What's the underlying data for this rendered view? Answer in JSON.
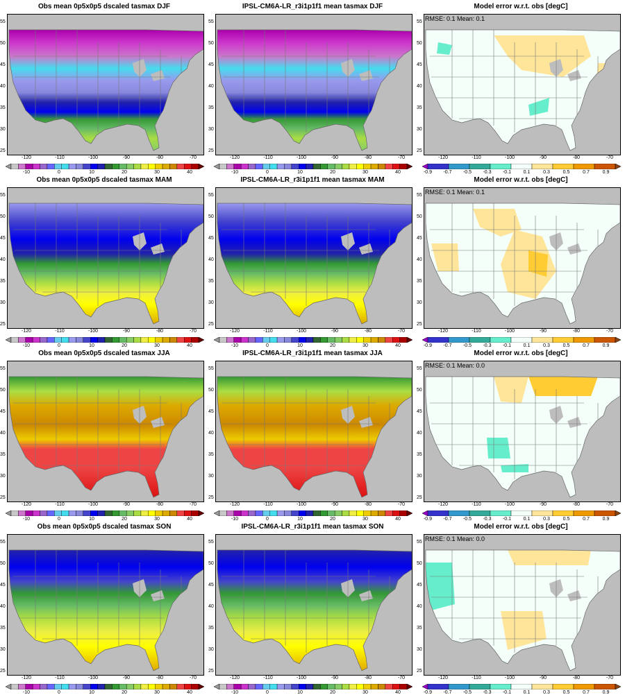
{
  "rows": [
    {
      "season": "DJF",
      "obs_title": "Obs mean 0p5x0p5 dscaled tasmax DJF",
      "model_title": "IPSL-CM6A-LR_r3i1p1f1 mean tasmax DJF",
      "err_title": "Model error w.r.t. obs [degC]",
      "err_stats": "RMSE: 0.1  Mean: 0.1"
    },
    {
      "season": "MAM",
      "obs_title": "Obs mean 0p5x0p5 dscaled tasmax MAM",
      "model_title": "IPSL-CM6A-LR_r3i1p1f1 mean tasmax MAM",
      "err_title": "Model error w.r.t. obs [degC]",
      "err_stats": "RMSE: 0.1  Mean: 0.1"
    },
    {
      "season": "JJA",
      "obs_title": "Obs mean 0p5x0p5 dscaled tasmax JJA",
      "model_title": "IPSL-CM6A-LR_r3i1p1f1 mean tasmax JJA",
      "err_title": "Model error w.r.t. obs [degC]",
      "err_stats": "RMSE: 0.1  Mean: 0.0"
    },
    {
      "season": "SON",
      "obs_title": "Obs mean 0p5x0p5 dscaled tasmax SON",
      "model_title": "IPSL-CM6A-LR_r3i1p1f1 mean tasmax SON",
      "err_title": "Model error w.r.t. obs [degC]",
      "err_stats": "RMSE: 0.1  Mean: 0.0"
    }
  ],
  "lat_ticks": [
    "55",
    "50",
    "45",
    "40",
    "35",
    "30",
    "25"
  ],
  "lon_ticks": [
    "-120",
    "-110",
    "-100",
    "-90",
    "-80",
    "-70"
  ],
  "temp_colorbar": {
    "labels": [
      "-10",
      "0",
      "10",
      "20",
      "30",
      "40"
    ],
    "colors": [
      "#9b9b9b",
      "#c8c8c8",
      "#cc77cc",
      "#aa00aa",
      "#cc33cc",
      "#9966cc",
      "#6666ff",
      "#66ccee",
      "#44ddee",
      "#9999ee",
      "#8888dd",
      "#4444cc",
      "#0000ee",
      "#2222aa",
      "#336633",
      "#339933",
      "#66bb66",
      "#88cc66",
      "#aadd44",
      "#eeee44",
      "#ffff00",
      "#eecc00",
      "#ddaa00",
      "#cc8800",
      "#ee4444",
      "#dd1111",
      "#aa0000",
      "#660000"
    ]
  },
  "err_colorbar": {
    "labels": [
      "-0.9",
      "-0.7",
      "-0.5",
      "-0.3",
      "-0.1",
      "0.1",
      "0.3",
      "0.5",
      "0.7",
      "0.9"
    ],
    "colors": [
      "#9900cc",
      "#3333cc",
      "#3399cc",
      "#33aa99",
      "#66eecc",
      "#f4fffa",
      "#ffe599",
      "#ffcc33",
      "#ee9900",
      "#cc5500",
      "#8b4513"
    ]
  }
}
